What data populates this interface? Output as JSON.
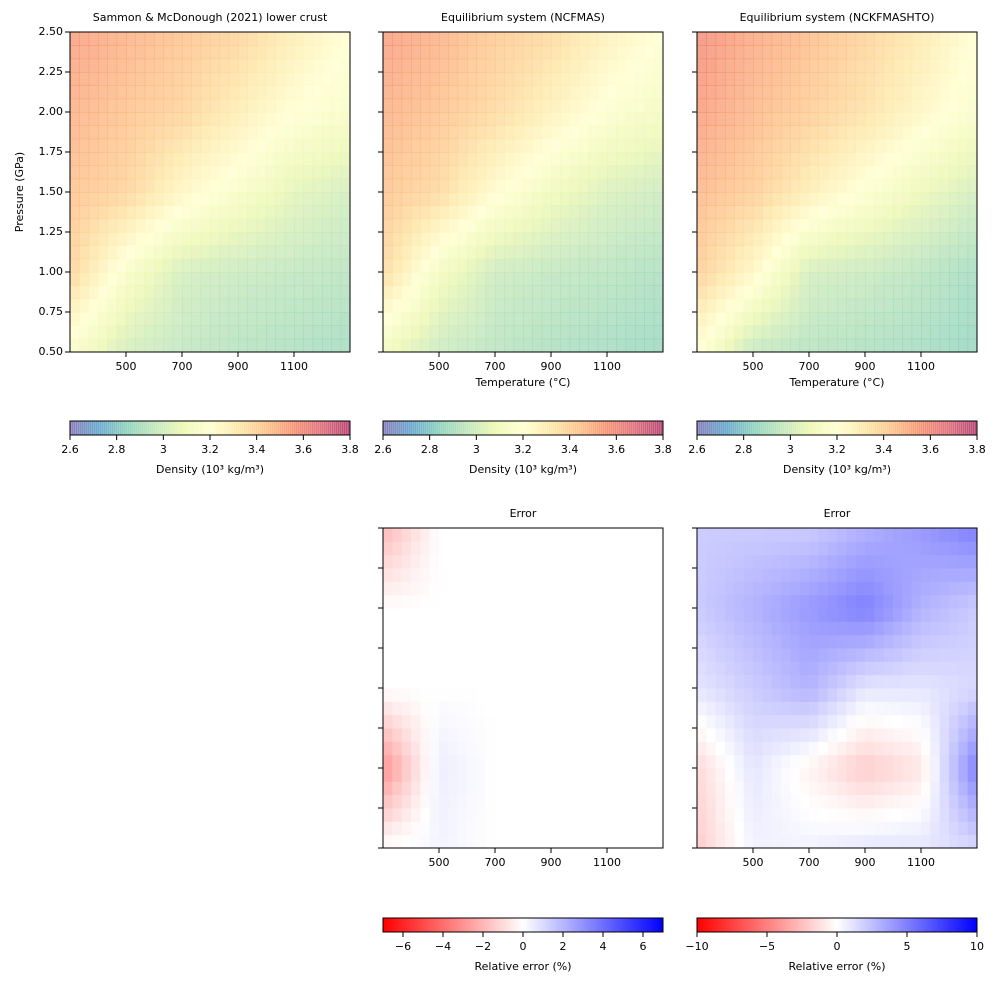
{
  "chart_data": [
    {
      "type": "heatmap",
      "title": "Sammon & McDonough (2021) lower crust",
      "ylabel": "Pressure (GPa)",
      "x": [
        300,
        500,
        700,
        900,
        1100,
        1300
      ],
      "y": [
        0.5,
        1.0,
        1.5,
        2.0,
        2.5
      ],
      "z": [
        [
          3.15,
          3.0,
          2.95,
          2.92,
          2.9,
          2.88
        ],
        [
          3.4,
          3.15,
          3.0,
          2.97,
          2.95,
          2.93
        ],
        [
          3.45,
          3.4,
          3.25,
          3.15,
          3.05,
          3.0
        ],
        [
          3.5,
          3.45,
          3.4,
          3.3,
          3.2,
          3.15
        ],
        [
          3.55,
          3.5,
          3.45,
          3.4,
          3.3,
          3.2
        ]
      ],
      "xlim": [
        300,
        1300
      ],
      "ylim": [
        0.5,
        2.5
      ],
      "xticks": [
        500,
        700,
        900,
        1100
      ],
      "yticks": [
        {
          "value": 0.5,
          "label": "0.50"
        },
        {
          "value": 0.75,
          "label": "0.75"
        },
        {
          "value": 1.0,
          "label": "1.00"
        },
        {
          "value": 1.25,
          "label": "1.25"
        },
        {
          "value": 1.5,
          "label": "1.50"
        },
        {
          "value": 1.75,
          "label": "1.75"
        },
        {
          "value": 2.0,
          "label": "2.00"
        },
        {
          "value": 2.25,
          "label": "2.25"
        },
        {
          "value": 2.5,
          "label": "2.50"
        }
      ],
      "show_ytick_labels": true,
      "clim": [
        2.6,
        3.8
      ],
      "opacity": 0.6,
      "colormap": [
        "#5e4fa2",
        "#3288bd",
        "#66c2a5",
        "#abdda4",
        "#e6f598",
        "#ffffbf",
        "#fee08b",
        "#fdae61",
        "#f46d43",
        "#d53e4f",
        "#9e0142"
      ]
    },
    {
      "type": "heatmap",
      "title": "Equilibrium system (NCFMAS)",
      "xlabel": "Temperature (°C)",
      "x": [
        300,
        500,
        700,
        900,
        1100,
        1300
      ],
      "y": [
        0.5,
        1.0,
        1.5,
        2.0,
        2.5
      ],
      "z": [
        [
          3.1,
          2.97,
          2.93,
          2.9,
          2.88,
          2.86
        ],
        [
          3.38,
          3.12,
          2.98,
          2.95,
          2.93,
          2.9
        ],
        [
          3.45,
          3.38,
          3.22,
          3.1,
          3.02,
          2.98
        ],
        [
          3.5,
          3.45,
          3.38,
          3.28,
          3.18,
          3.12
        ],
        [
          3.55,
          3.5,
          3.43,
          3.38,
          3.28,
          3.2
        ]
      ],
      "xlim": [
        300,
        1300
      ],
      "ylim": [
        0.5,
        2.5
      ],
      "xticks": [
        500,
        700,
        900,
        1100
      ],
      "yticks": [
        0.5,
        0.75,
        1.0,
        1.25,
        1.5,
        1.75,
        2.0,
        2.25,
        2.5
      ],
      "show_ytick_labels": false,
      "clim": [
        2.6,
        3.8
      ],
      "opacity": 0.6,
      "colormap": [
        "#5e4fa2",
        "#3288bd",
        "#66c2a5",
        "#abdda4",
        "#e6f598",
        "#ffffbf",
        "#fee08b",
        "#fdae61",
        "#f46d43",
        "#d53e4f",
        "#9e0142"
      ]
    },
    {
      "type": "heatmap",
      "title": "Equilibrium system (NCKFMASHTO)",
      "xlabel": "Temperature (°C)",
      "x": [
        300,
        500,
        700,
        900,
        1100,
        1300
      ],
      "y": [
        0.5,
        1.0,
        1.5,
        2.0,
        2.5
      ],
      "z": [
        [
          3.2,
          2.95,
          2.92,
          2.9,
          2.88,
          2.85
        ],
        [
          3.42,
          3.25,
          3.0,
          2.97,
          2.93,
          2.88
        ],
        [
          3.48,
          3.42,
          3.3,
          3.18,
          3.08,
          3.0
        ],
        [
          3.55,
          3.48,
          3.42,
          3.35,
          3.25,
          3.15
        ],
        [
          3.6,
          3.52,
          3.47,
          3.4,
          3.32,
          3.2
        ]
      ],
      "xlim": [
        300,
        1300
      ],
      "ylim": [
        0.5,
        2.5
      ],
      "xticks": [
        500,
        700,
        900,
        1100
      ],
      "yticks": [
        0.5,
        0.75,
        1.0,
        1.25,
        1.5,
        1.75,
        2.0,
        2.25,
        2.5
      ],
      "show_ytick_labels": false,
      "clim": [
        2.6,
        3.8
      ],
      "opacity": 0.6,
      "colormap": [
        "#5e4fa2",
        "#3288bd",
        "#66c2a5",
        "#abdda4",
        "#e6f598",
        "#ffffbf",
        "#fee08b",
        "#fdae61",
        "#f46d43",
        "#d53e4f",
        "#9e0142"
      ]
    },
    {
      "type": "colorbar",
      "label": "Density (10³ kg/m³)",
      "xlim": [
        2.6,
        3.8
      ],
      "xticks": [
        2.6,
        2.8,
        3.0,
        3.2,
        3.4,
        3.6,
        3.8
      ],
      "opacity": 0.6,
      "colormap": [
        "#5e4fa2",
        "#3288bd",
        "#66c2a5",
        "#abdda4",
        "#e6f598",
        "#ffffbf",
        "#fee08b",
        "#fdae61",
        "#f46d43",
        "#d53e4f",
        "#9e0142"
      ]
    },
    {
      "type": "colorbar",
      "label": "Density (10³ kg/m³)",
      "xlim": [
        2.6,
        3.8
      ],
      "xticks": [
        2.6,
        2.8,
        3.0,
        3.2,
        3.4,
        3.6,
        3.8
      ],
      "opacity": 0.6,
      "colormap": [
        "#5e4fa2",
        "#3288bd",
        "#66c2a5",
        "#abdda4",
        "#e6f598",
        "#ffffbf",
        "#fee08b",
        "#fdae61",
        "#f46d43",
        "#d53e4f",
        "#9e0142"
      ]
    },
    {
      "type": "colorbar",
      "label": "Density (10³ kg/m³)",
      "xlim": [
        2.6,
        3.8
      ],
      "xticks": [
        2.6,
        2.8,
        3.0,
        3.2,
        3.4,
        3.6,
        3.8
      ],
      "opacity": 0.6,
      "colormap": [
        "#5e4fa2",
        "#3288bd",
        "#66c2a5",
        "#abdda4",
        "#e6f598",
        "#ffffbf",
        "#fee08b",
        "#fdae61",
        "#f46d43",
        "#d53e4f",
        "#9e0142"
      ]
    },
    {
      "type": "heatmap",
      "title": "Error",
      "x": [
        300,
        500,
        700,
        900,
        1100,
        1300
      ],
      "y": [
        0.5,
        1.0,
        1.5,
        2.0,
        2.5
      ],
      "z": [
        [
          0,
          0.3,
          0,
          0,
          0,
          0
        ],
        [
          -3,
          0.5,
          0,
          0,
          0,
          0
        ],
        [
          0,
          0,
          0,
          0,
          0,
          0
        ],
        [
          0,
          0,
          0,
          0,
          0,
          0
        ],
        [
          -2,
          0,
          0,
          0,
          0,
          0
        ]
      ],
      "xlim": [
        300,
        1300
      ],
      "ylim": [
        0.5,
        2.5
      ],
      "xticks": [
        500,
        700,
        900,
        1100
      ],
      "yticks": [
        0.5,
        0.75,
        1.0,
        1.25,
        1.5,
        1.75,
        2.0,
        2.25,
        2.5
      ],
      "show_ytick_labels": false,
      "clim": [
        -7,
        7
      ],
      "opacity": 1,
      "colormap": [
        "#ff0000",
        "#ffffff",
        "#0000ff"
      ]
    },
    {
      "type": "heatmap",
      "title": "Error",
      "x": [
        300,
        500,
        700,
        900,
        1100,
        1300
      ],
      "y": [
        0.5,
        1.0,
        1.5,
        2.0,
        2.5
      ],
      "z": [
        [
          -2,
          0.5,
          0.5,
          1,
          1,
          1.5
        ],
        [
          -1.5,
          1,
          -0.5,
          -2,
          -1,
          5
        ],
        [
          1,
          2,
          3,
          1,
          1,
          1.5
        ],
        [
          2,
          3,
          4,
          5,
          3,
          2
        ],
        [
          2,
          2,
          2,
          3,
          4,
          5
        ]
      ],
      "xlim": [
        300,
        1300
      ],
      "ylim": [
        0.5,
        2.5
      ],
      "xticks": [
        500,
        700,
        900,
        1100
      ],
      "yticks": [
        0.5,
        0.75,
        1.0,
        1.25,
        1.5,
        1.75,
        2.0,
        2.25,
        2.5
      ],
      "show_ytick_labels": false,
      "clim": [
        -10,
        10
      ],
      "opacity": 1,
      "colormap": [
        "#ff0000",
        "#ffffff",
        "#0000ff"
      ]
    },
    {
      "type": "colorbar",
      "label": "Relative error (%)",
      "xlim": [
        -7,
        7
      ],
      "xticks": [
        {
          "value": -6,
          "label": "−6"
        },
        {
          "value": -4,
          "label": "−4"
        },
        {
          "value": -2,
          "label": "−2"
        },
        0,
        2,
        4,
        6
      ],
      "opacity": 1,
      "colormap": [
        "#ff0000",
        "#ffffff",
        "#0000ff"
      ]
    },
    {
      "type": "colorbar",
      "label": "Relative error (%)",
      "xlim": [
        -10,
        10
      ],
      "xticks": [
        {
          "value": -10,
          "label": "−10"
        },
        {
          "value": -5,
          "label": "−5"
        },
        0,
        5,
        10
      ],
      "opacity": 1,
      "colormap": [
        "#ff0000",
        "#ffffff",
        "#0000ff"
      ]
    }
  ]
}
